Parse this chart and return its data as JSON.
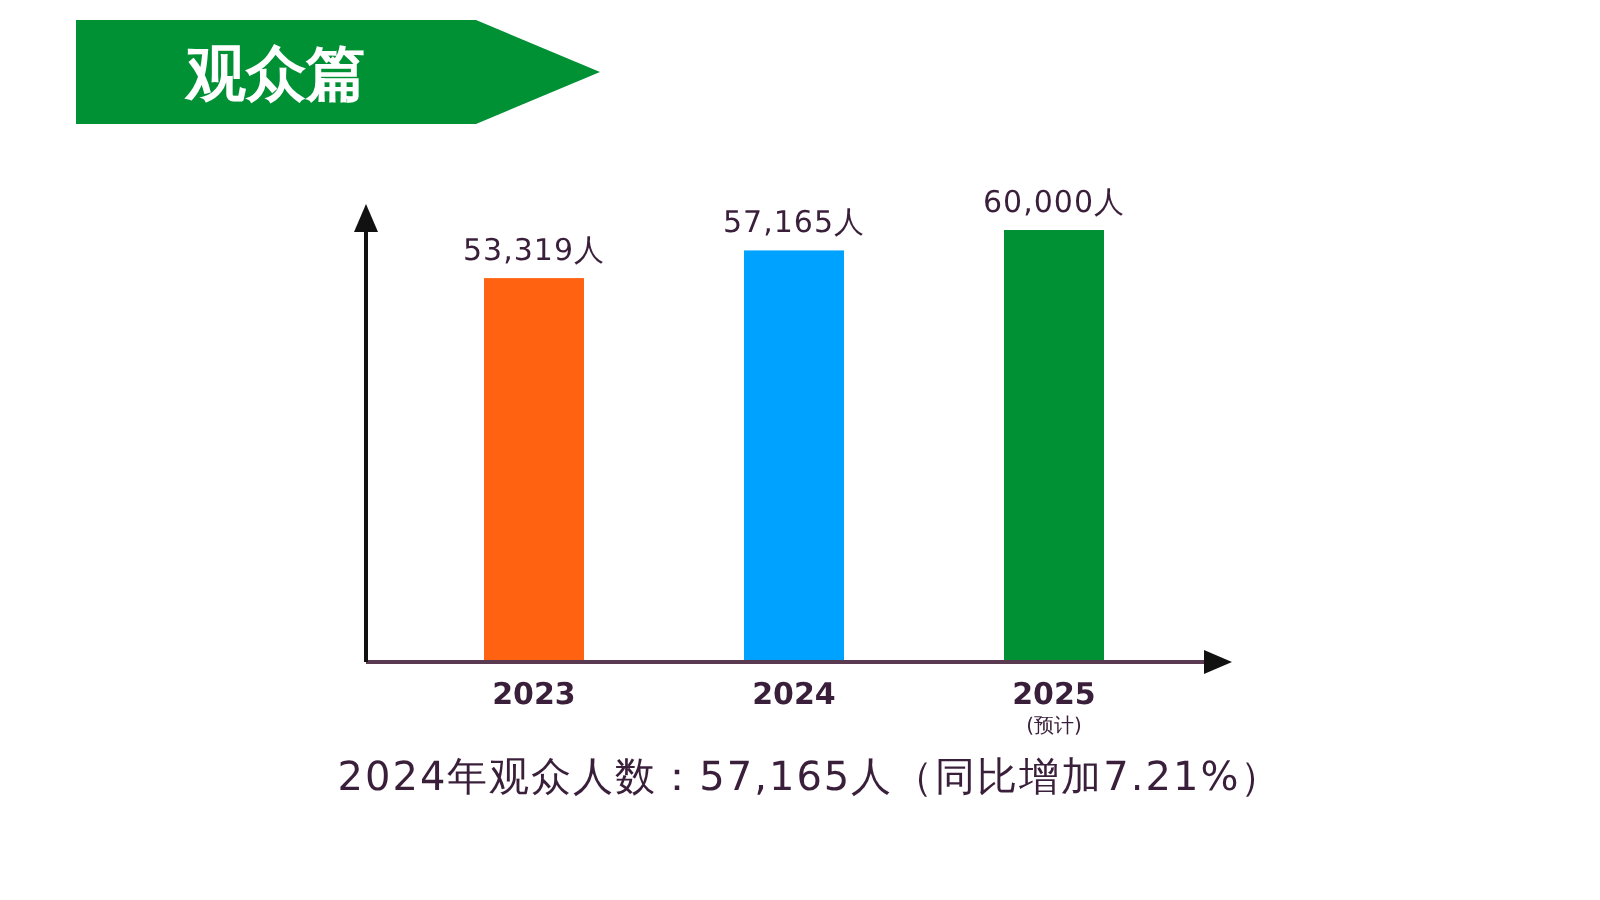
{
  "chart_data": {
    "type": "bar",
    "title": "观众篇",
    "categories": [
      "2023",
      "2024",
      "2025\n(预计)"
    ],
    "values": [
      53319,
      57165,
      60000
    ],
    "colors": [
      "#ff6210",
      "#00a2ff",
      "#009135"
    ],
    "value_labels": [
      "53,319人",
      "57,165人",
      "60,000人"
    ],
    "annotations": [
      "2024年观众人数：57,165人（同比增加7.21%）"
    ]
  }
}
